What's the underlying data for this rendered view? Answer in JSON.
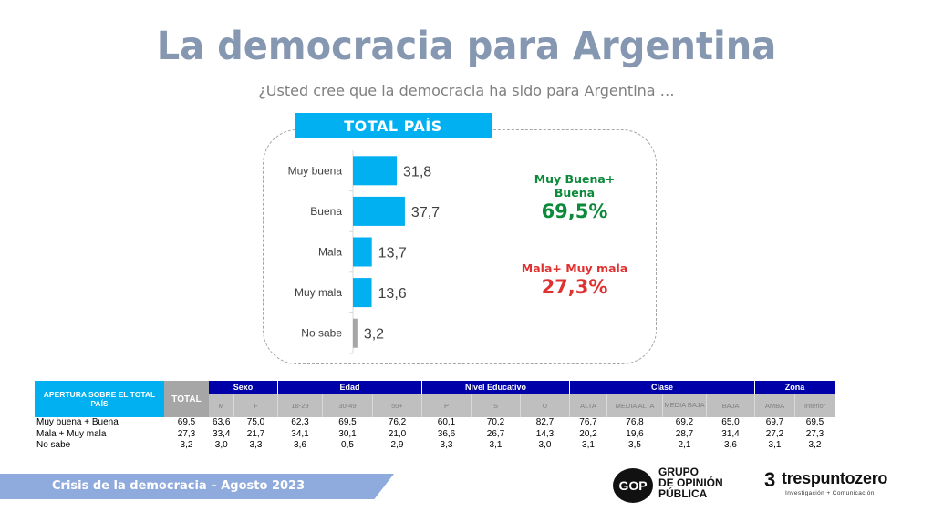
{
  "header": {
    "title": "La democracia para Argentina",
    "subtitle": "¿Usted cree que la democracia ha sido para Argentina …"
  },
  "banner": "TOTAL PAÍS",
  "chart_data": {
    "type": "bar",
    "orientation": "horizontal",
    "title": "TOTAL PAÍS",
    "categories": [
      "Muy buena",
      "Buena",
      "Mala",
      "Muy mala",
      "No sabe"
    ],
    "values": [
      31.8,
      37.7,
      13.7,
      13.6,
      3.2
    ],
    "value_labels": [
      "31,8",
      "37,7",
      "13,7",
      "13,6",
      "3,2"
    ],
    "colors": [
      "#00b0f0",
      "#00b0f0",
      "#00b0f0",
      "#00b0f0",
      "#a6a6a6"
    ],
    "xlabel": "",
    "ylabel": "",
    "xlim": [
      0,
      100
    ],
    "grid": false,
    "legend": "none"
  },
  "summary": {
    "positive": {
      "label": "Muy Buena+ Buena",
      "value": "69,5%",
      "color": "#0b8a3a"
    },
    "negative": {
      "label": "Mala+ Muy mala",
      "value": "27,3%",
      "color": "#e03131"
    }
  },
  "table": {
    "main_header": "APERTURA SOBRE EL TOTAL PAÍS",
    "total_header": "TOTAL",
    "groups": [
      {
        "label": "Sexo",
        "columns": [
          "M",
          "F"
        ]
      },
      {
        "label": "Edad",
        "columns": [
          "18-29",
          "30-49",
          "50+"
        ]
      },
      {
        "label": "Nivel Educativo",
        "columns": [
          "P",
          "S",
          "U"
        ]
      },
      {
        "label": "Clase",
        "columns": [
          "ALTA",
          "MEDIA ALTA",
          "MEDIA BAJA",
          "BAJA"
        ]
      },
      {
        "label": "Zona",
        "columns": [
          "AMBA",
          "Interior"
        ]
      }
    ],
    "rows": [
      {
        "label": "Muy buena + Buena",
        "total": "69,5",
        "values": [
          "63,6",
          "75,0",
          "62,3",
          "69,5",
          "76,2",
          "60,1",
          "70,2",
          "82,7",
          "76,7",
          "76,8",
          "69,2",
          "65,0",
          "69,7",
          "69,5"
        ]
      },
      {
        "label": "Mala + Muy mala",
        "total": "27,3",
        "values": [
          "33,4",
          "21,7",
          "34,1",
          "30,1",
          "21,0",
          "36,6",
          "26,7",
          "14,3",
          "20,2",
          "19,6",
          "28,7",
          "31,4",
          "27,2",
          "27,3"
        ]
      },
      {
        "label": "No sabe",
        "total": "3,2",
        "values": [
          "3,0",
          "3,3",
          "3,6",
          "0,5",
          "2,9",
          "3,3",
          "3,1",
          "3,0",
          "3,1",
          "3,5",
          "2,1",
          "3,6",
          "3,1",
          "3,2"
        ]
      }
    ]
  },
  "footer": {
    "text": "Crisis de la democracia – Agosto 2023"
  },
  "logos": {
    "gop": {
      "mark": "GOP",
      "lines": [
        "GRUPO",
        "DE OPINIÓN",
        "PÚBLICA"
      ]
    },
    "tpz": {
      "mark": "3",
      "name": "trespuntozero",
      "tagline": "Investigación + Comunicación"
    }
  }
}
